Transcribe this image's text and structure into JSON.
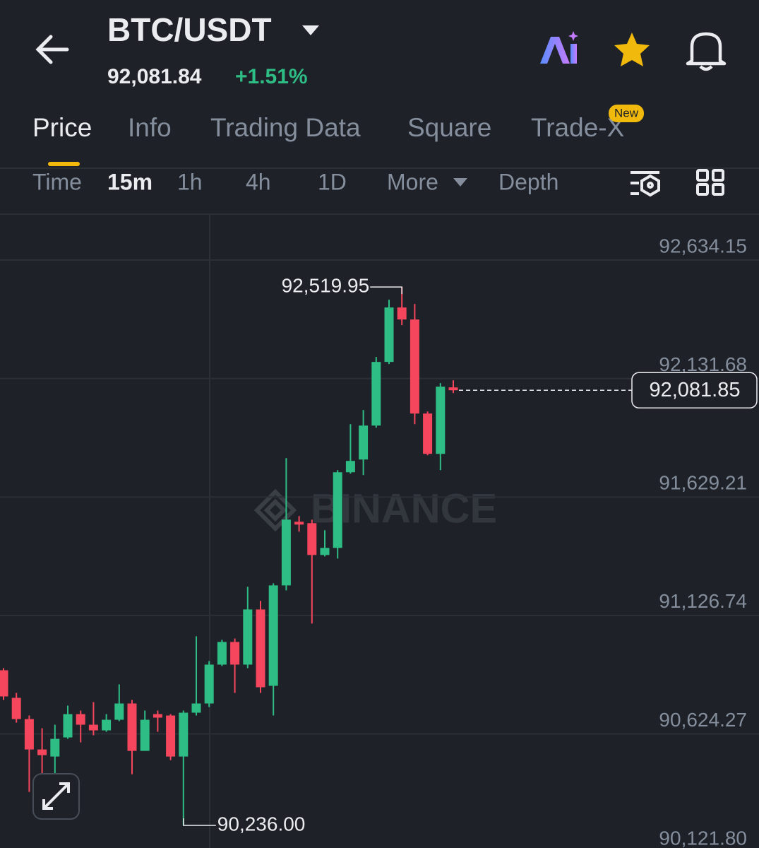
{
  "header": {
    "pair": "BTC/USDT",
    "price": "92,081.84",
    "change": "+1.51%"
  },
  "tabs": [
    "Price",
    "Info",
    "Trading Data",
    "Square",
    "Trade-X"
  ],
  "new_badge": "New",
  "intervals": [
    "Time",
    "15m",
    "1h",
    "4h",
    "1D",
    "More",
    "Depth"
  ],
  "watermark": "BINANCE",
  "chart_data": {
    "type": "candlestick",
    "open": [
      90894,
      90777,
      90687,
      90558,
      90528,
      90609,
      90708,
      90663,
      90639,
      90684,
      90753,
      90552,
      90708,
      90702,
      90528,
      90714,
      90753,
      90918,
      91014,
      90918,
      91152,
      90828,
      91254,
      91524,
      91518,
      91383,
      91413,
      91734,
      91788,
      91932,
      92202,
      92433,
      92382,
      91983,
      91812,
      92094
    ],
    "high": [
      90903,
      90798,
      90702,
      90648,
      90663,
      90744,
      90723,
      90759,
      90708,
      90834,
      90768,
      90723,
      90723,
      90708,
      90723,
      91038,
      90933,
      91023,
      91029,
      91248,
      91188,
      91263,
      91794,
      91548,
      91533,
      91488,
      91743,
      91938,
      91998,
      92223,
      92466,
      92519.95,
      92448,
      91992,
      92112,
      92124
    ],
    "low": [
      90768,
      90672,
      90378,
      90453,
      90378,
      90603,
      90588,
      90618,
      90633,
      90678,
      90453,
      90552,
      90633,
      90513,
      90236,
      90702,
      90738,
      90912,
      90798,
      90903,
      90798,
      90702,
      91233,
      91482,
      91092,
      91377,
      91368,
      91728,
      91722,
      91923,
      92193,
      92358,
      91938,
      91806,
      91743,
      92070
    ],
    "close": [
      90783,
      90687,
      90558,
      90534,
      90603,
      90708,
      90663,
      90639,
      90684,
      90753,
      90552,
      90684,
      90693,
      90528,
      90714,
      90753,
      90918,
      91014,
      90918,
      91152,
      90822,
      91254,
      91533,
      91512,
      91383,
      91413,
      91734,
      91782,
      91932,
      92202,
      92433,
      92382,
      91983,
      91812,
      92097,
      92081.85
    ],
    "ylim": [
      90140,
      92823
    ],
    "yticks": [
      {
        "value": 92634.15,
        "label": "92,634.15"
      },
      {
        "value": 92131.68,
        "label": "92,131.68"
      },
      {
        "value": 91629.21,
        "label": "91,629.21"
      },
      {
        "value": 91126.74,
        "label": "91,126.74"
      },
      {
        "value": 90624.27,
        "label": "90,624.27"
      },
      {
        "value": 90121.8,
        "label": "90,121.80"
      }
    ],
    "grid": true,
    "up_color": "#2ebd85",
    "down_color": "#f6465d",
    "high_label": "92,519.95",
    "low_label": "90,236.00",
    "last_label": "92,081.85"
  }
}
